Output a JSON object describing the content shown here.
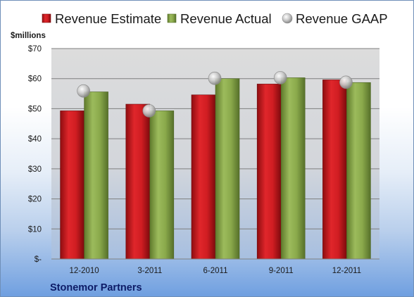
{
  "chart_data": {
    "type": "bar",
    "title": "",
    "unit_label": "$millions",
    "company": "Stonemor Partners",
    "categories": [
      "12-2010",
      "3-2011",
      "6-2011",
      "9-2011",
      "12-2011"
    ],
    "y_ticks": [
      0,
      10,
      20,
      30,
      40,
      50,
      60,
      70
    ],
    "y_tick_labels": [
      "$-",
      "$10",
      "$20",
      "$30",
      "$40",
      "$50",
      "$60",
      "$70"
    ],
    "ylim": [
      0,
      70
    ],
    "grid": true,
    "legend_position": "top",
    "series": [
      {
        "name": "Revenue Estimate",
        "kind": "bar",
        "color": "#c0171c",
        "values": [
          49.3,
          51.5,
          54.6,
          58.2,
          59.6
        ]
      },
      {
        "name": "Revenue Actual",
        "kind": "bar",
        "color": "#87a54a",
        "values": [
          55.6,
          49.3,
          60.0,
          60.3,
          58.7
        ]
      },
      {
        "name": "Revenue GAAP",
        "kind": "marker",
        "color": "#b8b8b8",
        "values": [
          55.9,
          49.3,
          60.1,
          60.3,
          58.8
        ]
      }
    ]
  }
}
